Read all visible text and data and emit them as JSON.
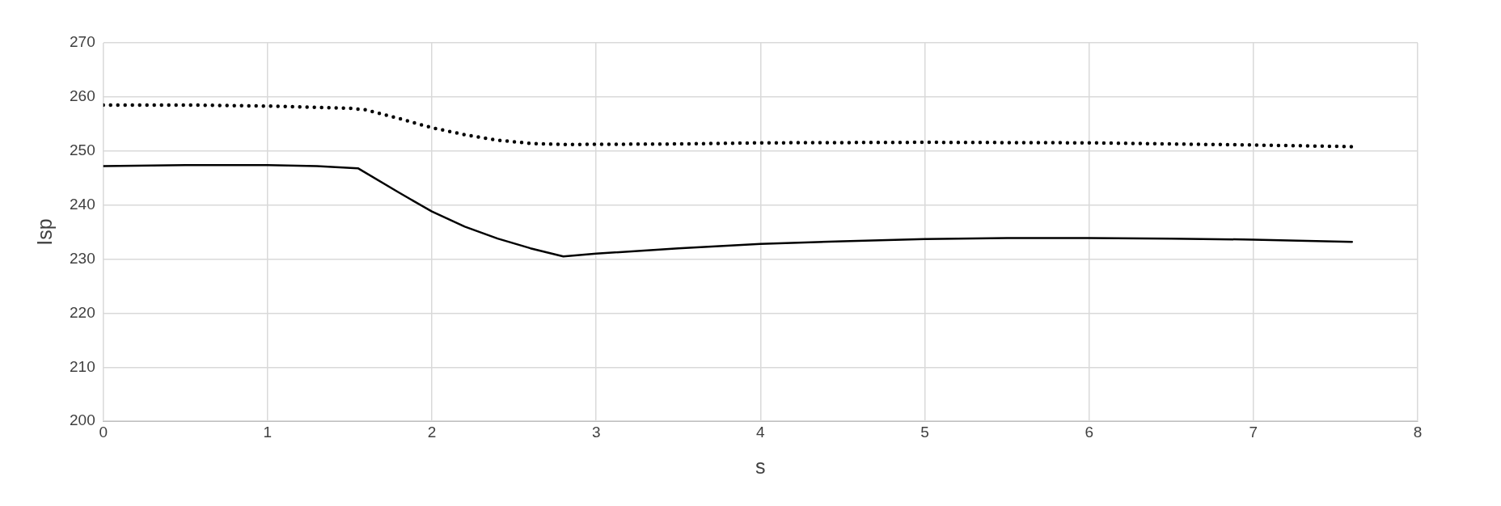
{
  "chart_data": {
    "type": "line",
    "xlabel": "s",
    "ylabel": "Isp",
    "xlim": [
      0,
      8
    ],
    "xticks": [
      0,
      1,
      2,
      3,
      4,
      5,
      6,
      7,
      8
    ],
    "ylim": [
      200,
      270
    ],
    "yticks": [
      200,
      210,
      220,
      230,
      240,
      250,
      260,
      270
    ],
    "grid": true,
    "legend": false,
    "marker": "none",
    "series": [
      {
        "color": "#000000",
        "line_style": "dotted",
        "x": [
          0,
          0.5,
          1,
          1.5,
          1.6,
          1.8,
          2,
          2.2,
          2.4,
          2.6,
          2.8,
          3.5,
          4,
          5,
          6,
          7,
          7.6
        ],
        "values": [
          258.5,
          258.5,
          258.3,
          257.9,
          257.6,
          256,
          254.3,
          253,
          252,
          251.4,
          251.2,
          251.3,
          251.5,
          251.6,
          251.5,
          251.1,
          250.8
        ]
      },
      {
        "color": "#000000",
        "line_style": "solid",
        "x": [
          0,
          0.5,
          1,
          1.3,
          1.55,
          1.8,
          2,
          2.2,
          2.4,
          2.6,
          2.8,
          3,
          3.5,
          4,
          4.5,
          5,
          5.5,
          6,
          6.5,
          7,
          7.6
        ],
        "values": [
          247.2,
          247.4,
          247.4,
          247.2,
          246.8,
          242.3,
          238.8,
          236,
          233.8,
          232,
          230.5,
          231,
          232,
          232.8,
          233.3,
          233.7,
          233.9,
          233.9,
          233.8,
          233.6,
          233.2
        ]
      }
    ]
  }
}
